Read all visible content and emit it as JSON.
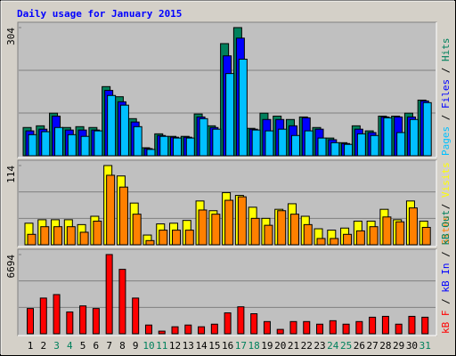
{
  "chart_data": [
    {
      "type": "bar",
      "title": "Daily usage for January 2015",
      "ylim": [
        0,
        304
      ],
      "yticks": [
        304
      ],
      "legend_separator": " / ",
      "series": [
        {
          "name": "Pages",
          "color": "#00c0ff",
          "values": [
            50,
            57,
            67,
            50,
            46,
            59,
            143,
            120,
            69,
            15,
            46,
            42,
            42,
            88,
            63,
            195,
            229,
            61,
            59,
            63,
            48,
            59,
            42,
            31,
            27,
            52,
            48,
            90,
            55,
            86,
            126
          ]
        },
        {
          "name": "Files",
          "color": "#0000ff",
          "values": [
            59,
            63,
            94,
            61,
            61,
            61,
            155,
            128,
            80,
            17,
            48,
            44,
            44,
            92,
            67,
            237,
            279,
            63,
            86,
            86,
            71,
            90,
            63,
            38,
            29,
            63,
            55,
            92,
            92,
            92,
            130
          ]
        },
        {
          "name": "Hits",
          "color": "#00805c",
          "values": [
            67,
            71,
            101,
            67,
            69,
            67,
            164,
            140,
            88,
            19,
            52,
            46,
            46,
            99,
            71,
            266,
            304,
            65,
            101,
            94,
            86,
            92,
            67,
            42,
            31,
            71,
            59,
            94,
            94,
            101,
            132
          ]
        }
      ]
    },
    {
      "type": "bar",
      "ylim": [
        0,
        114
      ],
      "yticks": [
        114
      ],
      "legend_separator": " / ",
      "series": [
        {
          "name": "Sites",
          "color": "#ff8000",
          "values": [
            15,
            26,
            26,
            26,
            18,
            34,
            100,
            83,
            44,
            6,
            21,
            21,
            21,
            50,
            44,
            64,
            69,
            38,
            28,
            49,
            44,
            29,
            9,
            9,
            15,
            20,
            26,
            40,
            33,
            53,
            25
          ]
        },
        {
          "name": "Visits",
          "color": "#ffff00",
          "values": [
            31,
            36,
            36,
            36,
            29,
            41,
            114,
            99,
            60,
            14,
            30,
            31,
            35,
            63,
            49,
            75,
            71,
            54,
            38,
            51,
            59,
            41,
            23,
            21,
            24,
            34,
            34,
            51,
            36,
            63,
            34
          ]
        }
      ]
    },
    {
      "type": "bar",
      "ylim": [
        0,
        6694
      ],
      "yticks": [
        6694
      ],
      "legend_separator": " / ",
      "categories": [
        "1",
        "2",
        "3",
        "4",
        "5",
        "6",
        "7",
        "8",
        "9",
        "10",
        "11",
        "12",
        "13",
        "14",
        "15",
        "16",
        "17",
        "18",
        "19",
        "20",
        "21",
        "22",
        "23",
        "24",
        "25",
        "26",
        "27",
        "28",
        "29",
        "30",
        "31"
      ],
      "label_colors": [
        "#000",
        "#000",
        "#00805c",
        "#00805c",
        "#000",
        "#000",
        "#000",
        "#000",
        "#000",
        "#00805c",
        "#00805c",
        "#000",
        "#000",
        "#000",
        "#000",
        "#000",
        "#00805c",
        "#00805c",
        "#000",
        "#000",
        "#000",
        "#000",
        "#000",
        "#00805c",
        "#00805c",
        "#000",
        "#000",
        "#000",
        "#000",
        "#000",
        "#00805c"
      ],
      "series": [
        {
          "name": "kB F",
          "color": "#ff0000",
          "values": [
            2133,
            3016,
            3310,
            1839,
            2354,
            2133,
            6694,
            5444,
            3016,
            736,
            221,
            589,
            736,
            589,
            809,
            1765,
            2280,
            1692,
            1030,
            368,
            1030,
            1030,
            809,
            1103,
            809,
            1030,
            1398,
            1471,
            809,
            1471,
            1398
          ]
        },
        {
          "name": "kB In",
          "color": "#0000ff"
        },
        {
          "name": "kB Out",
          "color": "#00805c"
        }
      ]
    }
  ]
}
